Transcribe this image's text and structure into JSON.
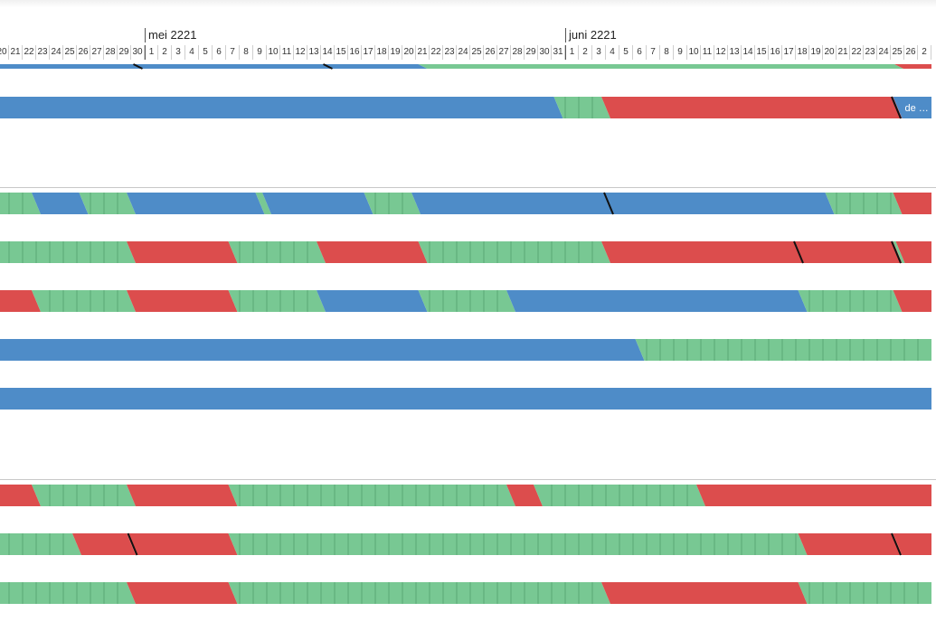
{
  "timeline": {
    "months": [
      {
        "label": "mei 2221",
        "start_col": 11
      },
      {
        "label": "juni 2221",
        "start_col": 42
      }
    ],
    "days": [
      "20",
      "21",
      "22",
      "23",
      "24",
      "25",
      "26",
      "27",
      "28",
      "29",
      "30",
      "1",
      "2",
      "3",
      "4",
      "5",
      "6",
      "7",
      "8",
      "9",
      "10",
      "11",
      "12",
      "13",
      "14",
      "15",
      "16",
      "17",
      "18",
      "19",
      "20",
      "21",
      "22",
      "23",
      "24",
      "25",
      "26",
      "27",
      "28",
      "29",
      "30",
      "31",
      "1",
      "2",
      "3",
      "4",
      "5",
      "6",
      "7",
      "8",
      "9",
      "10",
      "11",
      "12",
      "13",
      "14",
      "15",
      "16",
      "17",
      "18",
      "19",
      "20",
      "21",
      "22",
      "23",
      "24",
      "25",
      "26",
      "2"
    ]
  },
  "colors": {
    "blue": "#4e8cc8",
    "green": "#78c893",
    "red": "#dc4d4d",
    "separator": "#c8c8c8"
  },
  "rows": [
    {
      "id": "row-top",
      "segments": [
        {
          "color": "blue",
          "start": 0,
          "end": 31.5
        },
        {
          "color": "green",
          "start": 31.5,
          "end": 66.6
        },
        {
          "color": "red",
          "start": 66.6,
          "end": 69
        }
      ],
      "marks": [
        10.5,
        24.5
      ]
    },
    {
      "id": "row-1",
      "segments": [
        {
          "color": "blue",
          "start": 0,
          "end": 41.5
        },
        {
          "color": "green",
          "start": 41.5,
          "end": 45
        },
        {
          "color": "red",
          "start": 45,
          "end": 66.5
        },
        {
          "color": "blue",
          "start": 66.5,
          "end": 69,
          "label": "de …"
        }
      ],
      "marks": [
        66.4
      ]
    },
    {
      "id": "row-2",
      "segments": [
        {
          "color": "green",
          "start": 0,
          "end": 3
        },
        {
          "color": "blue",
          "start": 3,
          "end": 6.5
        },
        {
          "color": "green",
          "start": 6.5,
          "end": 10
        },
        {
          "color": "blue",
          "start": 10,
          "end": 19.5
        },
        {
          "color": "green",
          "start": 19.5,
          "end": 20
        },
        {
          "color": "blue",
          "start": 20,
          "end": 27.5
        },
        {
          "color": "green",
          "start": 27.5,
          "end": 31
        },
        {
          "color": "blue",
          "start": 31,
          "end": 61.5
        },
        {
          "color": "green",
          "start": 61.5,
          "end": 66.5
        },
        {
          "color": "red",
          "start": 66.5,
          "end": 69
        }
      ],
      "marks": [
        45.2
      ]
    },
    {
      "id": "row-3",
      "segments": [
        {
          "color": "green",
          "start": 0,
          "end": 10
        },
        {
          "color": "red",
          "start": 10,
          "end": 17.5
        },
        {
          "color": "green",
          "start": 17.5,
          "end": 24
        },
        {
          "color": "red",
          "start": 24,
          "end": 31.5
        },
        {
          "color": "green",
          "start": 31.5,
          "end": 45
        },
        {
          "color": "red",
          "start": 45,
          "end": 66.5
        },
        {
          "color": "green",
          "start": 66.5,
          "end": 66.7
        },
        {
          "color": "red",
          "start": 66.7,
          "end": 69
        }
      ],
      "marks": [
        59.2,
        66.4
      ]
    },
    {
      "id": "row-4",
      "segments": [
        {
          "color": "red",
          "start": 0,
          "end": 3
        },
        {
          "color": "green",
          "start": 3,
          "end": 10
        },
        {
          "color": "red",
          "start": 10,
          "end": 17.5
        },
        {
          "color": "green",
          "start": 17.5,
          "end": 24
        },
        {
          "color": "blue",
          "start": 24,
          "end": 31.5
        },
        {
          "color": "green",
          "start": 31.5,
          "end": 38
        },
        {
          "color": "blue",
          "start": 38,
          "end": 59.5
        },
        {
          "color": "green",
          "start": 59.5,
          "end": 66.5
        },
        {
          "color": "red",
          "start": 66.5,
          "end": 69
        }
      ],
      "marks": []
    },
    {
      "id": "row-5",
      "segments": [
        {
          "color": "blue",
          "start": 0,
          "end": 47.5
        },
        {
          "color": "green",
          "start": 47.5,
          "end": 69
        }
      ],
      "marks": []
    },
    {
      "id": "row-6",
      "segments": [
        {
          "color": "blue",
          "start": 0,
          "end": 69
        }
      ],
      "marks": []
    },
    {
      "id": "row-7",
      "segments": [
        {
          "color": "red",
          "start": 0,
          "end": 3
        },
        {
          "color": "green",
          "start": 3,
          "end": 10
        },
        {
          "color": "red",
          "start": 10,
          "end": 17.5
        },
        {
          "color": "green",
          "start": 17.5,
          "end": 38
        },
        {
          "color": "red",
          "start": 38,
          "end": 40
        },
        {
          "color": "green",
          "start": 40,
          "end": 52
        },
        {
          "color": "red",
          "start": 52,
          "end": 69
        }
      ],
      "marks": []
    },
    {
      "id": "row-8",
      "segments": [
        {
          "color": "green",
          "start": 0,
          "end": 6
        },
        {
          "color": "red",
          "start": 6,
          "end": 10
        },
        {
          "color": "red",
          "start": 10,
          "end": 17.5
        },
        {
          "color": "green",
          "start": 17.5,
          "end": 59.5
        },
        {
          "color": "red",
          "start": 59.5,
          "end": 66.5
        },
        {
          "color": "red",
          "start": 66.5,
          "end": 69
        }
      ],
      "marks": [
        10.1,
        66.4
      ]
    },
    {
      "id": "row-9",
      "segments": [
        {
          "color": "green",
          "start": 0,
          "end": 10
        },
        {
          "color": "red",
          "start": 10,
          "end": 17.5
        },
        {
          "color": "green",
          "start": 17.5,
          "end": 45
        },
        {
          "color": "red",
          "start": 45,
          "end": 59.5
        },
        {
          "color": "green",
          "start": 59.5,
          "end": 69
        }
      ],
      "marks": []
    }
  ]
}
